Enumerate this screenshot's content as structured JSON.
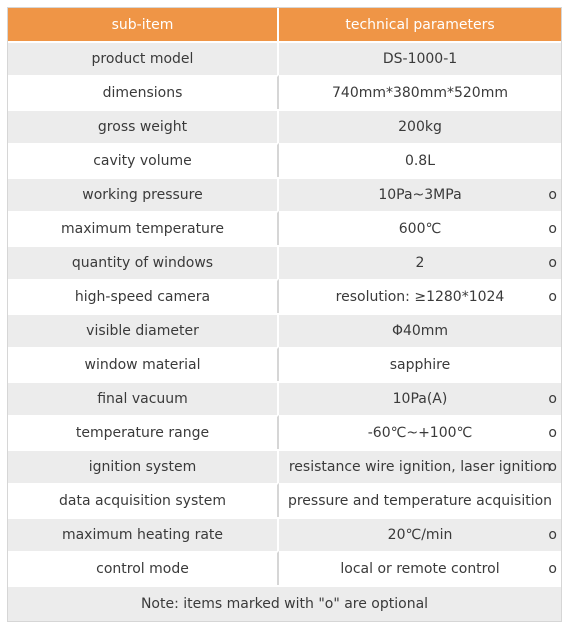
{
  "header": {
    "col1": "sub-item",
    "col2": "technical parameters"
  },
  "rows": [
    {
      "label": "product model",
      "value": "DS-1000-1",
      "mark": ""
    },
    {
      "label": "dimensions",
      "value": "740mm*380mm*520mm",
      "mark": ""
    },
    {
      "label": "gross weight",
      "value": "200kg",
      "mark": ""
    },
    {
      "label": "cavity volume",
      "value": "0.8L",
      "mark": ""
    },
    {
      "label": "working pressure",
      "value": "10Pa~3MPa",
      "mark": "o"
    },
    {
      "label": "maximum temperature",
      "value": "600℃",
      "mark": "o"
    },
    {
      "label": "quantity of windows",
      "value": "2",
      "mark": "o"
    },
    {
      "label": "high-speed camera",
      "value": "resolution: ≥1280*1024",
      "mark": "o"
    },
    {
      "label": "visible diameter",
      "value": "Φ40mm",
      "mark": ""
    },
    {
      "label": "window material",
      "value": "sapphire",
      "mark": ""
    },
    {
      "label": "final vacuum",
      "value": "10Pa(A)",
      "mark": "o"
    },
    {
      "label": "temperature range",
      "value": "-60℃~+100℃",
      "mark": "o"
    },
    {
      "label": "ignition system",
      "value": "resistance wire ignition, laser ignition",
      "mark": "o"
    },
    {
      "label": "data acquisition system",
      "value": "pressure and temperature acquisition",
      "mark": ""
    },
    {
      "label": "maximum heating rate",
      "value": "20℃/min",
      "mark": "o"
    },
    {
      "label": "control mode",
      "value": "local or remote control",
      "mark": "o"
    }
  ],
  "note": "Note: items marked with \"o\" are optional",
  "colors": {
    "header_bg": "#ef9546",
    "stripe_bg": "#ececec"
  }
}
